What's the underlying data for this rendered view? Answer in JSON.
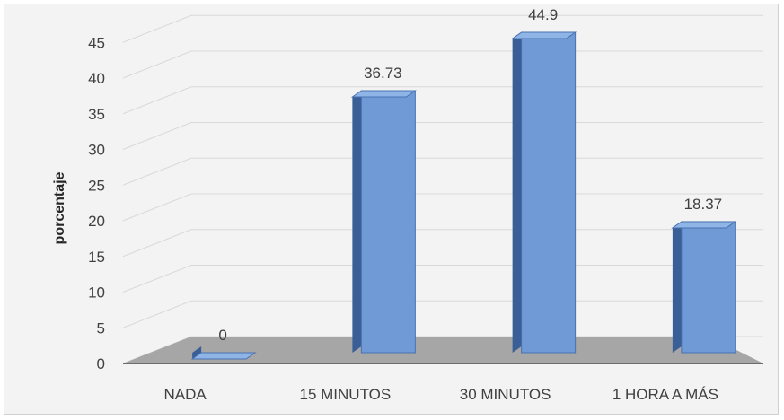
{
  "chart_data": {
    "type": "bar",
    "categories": [
      "NADA",
      "15 MINUTOS",
      "30 MINUTOS",
      "1 HORA A MÁS"
    ],
    "values": [
      0,
      36.73,
      44.9,
      18.37
    ],
    "data_labels": [
      "0",
      "36.73",
      "44.9",
      "18.37"
    ],
    "title": "",
    "xlabel": "",
    "ylabel": "porcentaje",
    "ylim": [
      0,
      45
    ],
    "yticks": [
      "0",
      "5",
      "10",
      "15",
      "20",
      "25",
      "30",
      "35",
      "40",
      "45"
    ],
    "grid": true,
    "style": "3d-column",
    "colors": {
      "bar_front": "#6f9ad6",
      "bar_top": "#8fb4e6",
      "bar_side": "#3a5f96",
      "floor": "#a6a6a6",
      "background": "#f3f3f3",
      "gridline": "#d9d9d9"
    }
  }
}
